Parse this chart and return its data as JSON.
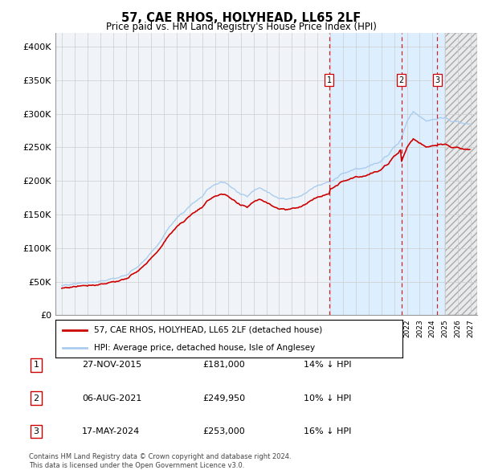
{
  "title": "57, CAE RHOS, HOLYHEAD, LL65 2LF",
  "subtitle": "Price paid vs. HM Land Registry's House Price Index (HPI)",
  "legend_line1": "57, CAE RHOS, HOLYHEAD, LL65 2LF (detached house)",
  "legend_line2": "HPI: Average price, detached house, Isle of Anglesey",
  "sale_dates": [
    "27-NOV-2015",
    "06-AUG-2021",
    "17-MAY-2024"
  ],
  "sale_prices": [
    181000,
    249950,
    253000
  ],
  "sale_hpi_diff": [
    "14% ↓ HPI",
    "10% ↓ HPI",
    "16% ↓ HPI"
  ],
  "footnote1": "Contains HM Land Registry data © Crown copyright and database right 2024.",
  "footnote2": "This data is licensed under the Open Government Licence v3.0.",
  "hpi_color": "#aaccee",
  "sale_color": "#cc0000",
  "ylim": [
    0,
    420000
  ],
  "yticks": [
    0,
    50000,
    100000,
    150000,
    200000,
    250000,
    300000,
    350000,
    400000
  ],
  "ytick_labels": [
    "£0",
    "£50K",
    "£100K",
    "£150K",
    "£200K",
    "£250K",
    "£300K",
    "£350K",
    "£400K"
  ],
  "xlim_start": 1994.5,
  "xlim_end": 2027.5,
  "background_color": "#ffffff",
  "grid_color": "#cccccc",
  "shade_color_sales": "#ddeeff",
  "shade_color_future": "#e8eaec",
  "sale1_yr": 2015.9167,
  "sale2_yr": 2021.5833,
  "sale3_yr": 2024.375,
  "future_start_yr": 2025.0
}
